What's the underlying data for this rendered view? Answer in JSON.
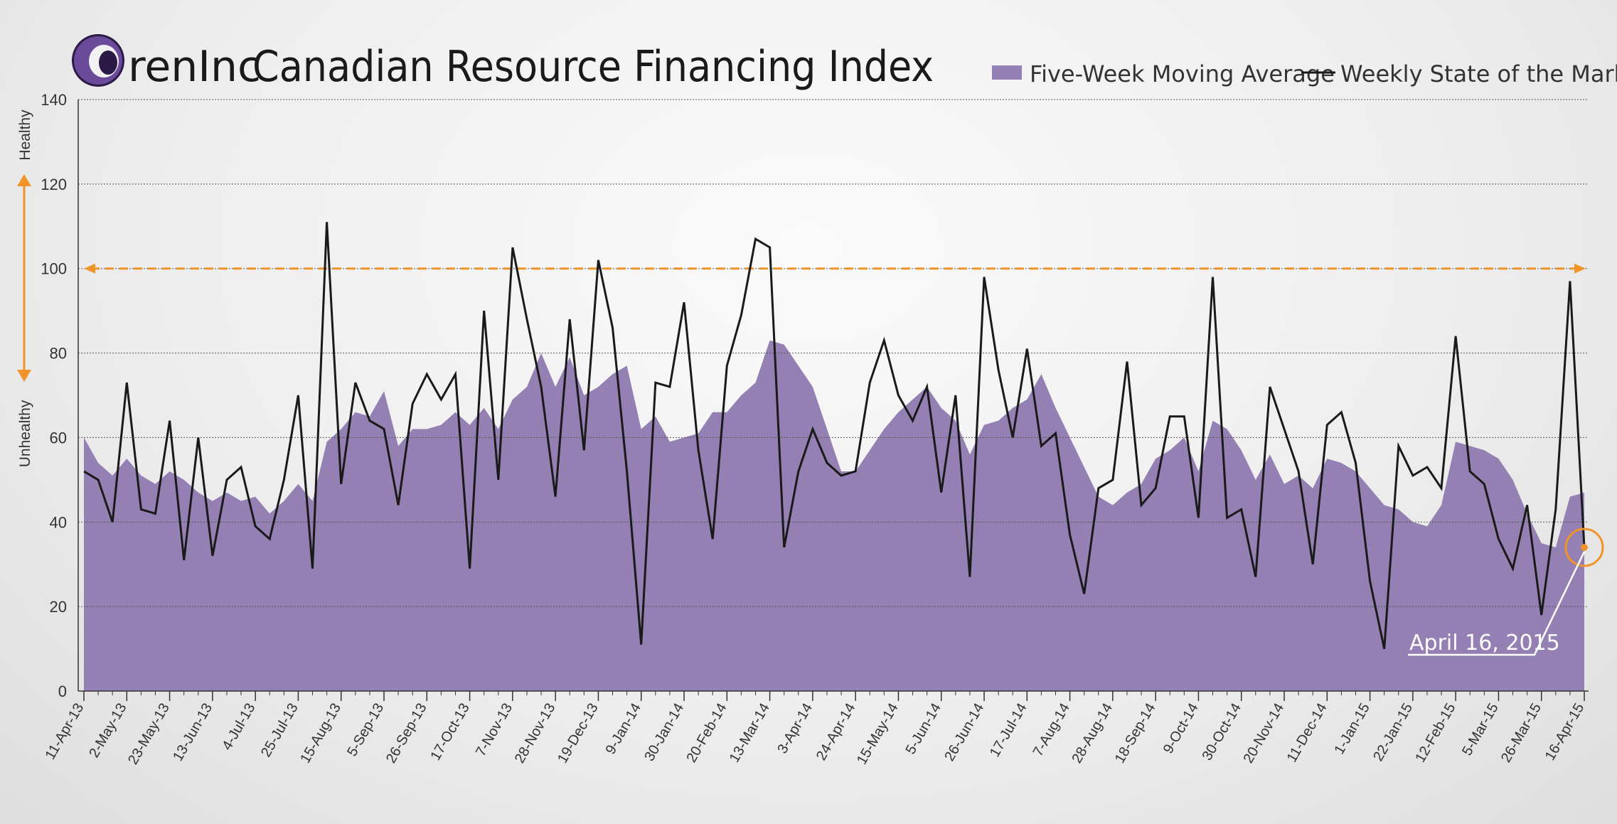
{
  "header": {
    "brand": "renInc",
    "title": "Canadian Resource Financing Index"
  },
  "legend": {
    "area_label": "Five-Week Moving Average",
    "line_label": "Weekly State of the Market"
  },
  "side_labels": {
    "top": "Healthy",
    "bottom": "Unhealthy"
  },
  "annotation": {
    "text": "April 16, 2015",
    "value": 34
  },
  "colors": {
    "area": "#9480b3",
    "line": "#1a1a1a",
    "threshold": "#f0942a",
    "grid": "#555555"
  },
  "chart_data": {
    "type": "line",
    "title": "Canadian Resource Financing Index",
    "ylim": [
      0,
      140
    ],
    "yticks": [
      0,
      20,
      40,
      60,
      80,
      100,
      120,
      140
    ],
    "threshold": 100,
    "x_tick_labels": [
      "11-Apr-13",
      "2-May-13",
      "23-May-13",
      "13-Jun-13",
      "4-Jul-13",
      "25-Jul-13",
      "15-Aug-13",
      "5-Sep-13",
      "26-Sep-13",
      "17-Oct-13",
      "7-Nov-13",
      "28-Nov-13",
      "19-Dec-13",
      "9-Jan-14",
      "30-Jan-14",
      "20-Feb-14",
      "13-Mar-14",
      "3-Apr-14",
      "24-Apr-14",
      "15-May-14",
      "5-Jun-14",
      "26-Jun-14",
      "17-Jul-14",
      "7-Aug-14",
      "28-Aug-14",
      "18-Sep-14",
      "9-Oct-14",
      "30-Oct-14",
      "20-Nov-14",
      "11-Dec-14",
      "1-Jan-15",
      "22-Jan-15",
      "12-Feb-15",
      "5-Mar-15",
      "26-Mar-15",
      "16-Apr-15"
    ],
    "series": [
      {
        "name": "Five-Week Moving Average",
        "type": "area",
        "values": [
          60,
          54,
          51,
          55,
          51,
          49,
          52,
          50,
          47,
          45,
          47,
          45,
          46,
          42,
          45,
          49,
          45,
          59,
          62,
          66,
          65,
          71,
          58,
          62,
          62,
          63,
          66,
          63,
          67,
          62,
          69,
          72,
          80,
          72,
          79,
          70,
          72,
          75,
          77,
          62,
          65,
          59,
          60,
          61,
          66,
          66,
          70,
          73,
          83,
          82,
          77,
          72,
          62,
          52,
          52,
          57,
          62,
          66,
          69,
          72,
          67,
          64,
          56,
          63,
          64,
          67,
          69,
          75,
          67,
          60,
          53,
          46,
          44,
          47,
          49,
          55,
          57,
          60,
          52,
          64,
          62,
          57,
          50,
          56,
          49,
          51,
          48,
          55,
          54,
          52,
          48,
          44,
          43,
          40,
          39,
          44,
          59,
          58,
          57,
          55,
          50,
          42,
          35,
          34,
          46,
          47
        ]
      },
      {
        "name": "Weekly State of the Market",
        "type": "line",
        "values": [
          52,
          50,
          40,
          73,
          43,
          42,
          64,
          31,
          60,
          32,
          50,
          53,
          39,
          36,
          50,
          70,
          29,
          111,
          49,
          73,
          64,
          62,
          44,
          68,
          75,
          69,
          75,
          29,
          90,
          50,
          105,
          88,
          72,
          46,
          88,
          57,
          102,
          86,
          52,
          11,
          73,
          72,
          92,
          57,
          36,
          77,
          89,
          107,
          105,
          34,
          52,
          62,
          54,
          51,
          52,
          73,
          83,
          70,
          64,
          72,
          47,
          70,
          27,
          98,
          76,
          60,
          81,
          58,
          61,
          37,
          23,
          48,
          50,
          78,
          44,
          48,
          65,
          65,
          41,
          98,
          41,
          43,
          27,
          72,
          62,
          52,
          30,
          63,
          66,
          54,
          26,
          10,
          58,
          51,
          53,
          48,
          84,
          52,
          49,
          36,
          29,
          44,
          18,
          43,
          97,
          34
        ]
      }
    ]
  }
}
